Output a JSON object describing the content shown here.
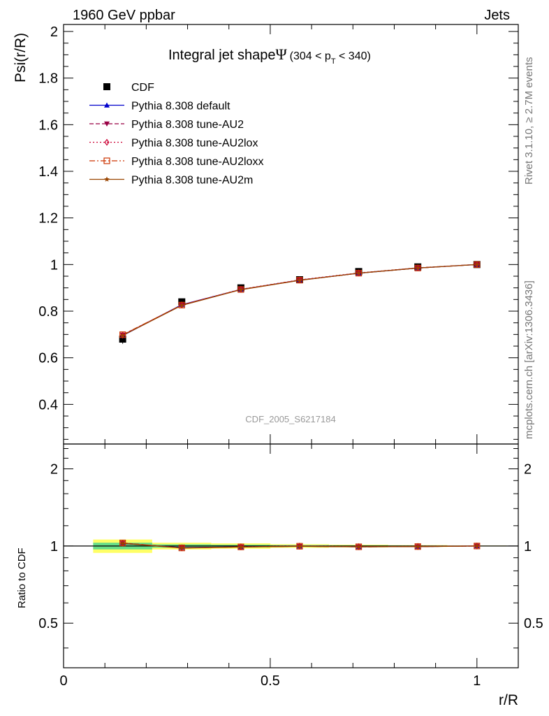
{
  "header": {
    "left": "1960 GeV ppbar",
    "right": "Jets"
  },
  "side_text": {
    "rivet": "Rivet 3.1.10, ≥ 2.7M events",
    "mcplots": "mcplots.cern.ch [arXiv:1306.3436]"
  },
  "chart_data": [
    {
      "type": "line",
      "title_main": "Integral jet shape",
      "title_symbol": "Ψ",
      "title_range_pre": "(304 < p",
      "title_range_sub": "T",
      "title_range_post": " < 340)",
      "ylabel": "Psi(r/R)",
      "xlabel": "",
      "watermark": "CDF_2005_S6217184",
      "xlim": [
        0,
        1.1
      ],
      "ylim": [
        0.23,
        2.03
      ],
      "yticks": [
        0.4,
        0.6,
        0.8,
        1,
        1.2,
        1.4,
        1.6,
        1.8,
        2
      ],
      "ytick_labels": [
        "0.4",
        "0.6",
        "0.8",
        "1",
        "1.2",
        "1.4",
        "1.6",
        "1.8",
        "2"
      ],
      "legend_position": "top-left",
      "x": [
        0.143,
        0.286,
        0.429,
        0.571,
        0.714,
        0.857,
        1.0
      ],
      "data": {
        "name": "CDF",
        "color": "#000000",
        "marker": "square",
        "y": [
          0.68,
          0.84,
          0.9,
          0.935,
          0.97,
          0.99,
          1.0
        ],
        "yerr": [
          0.02,
          0.012,
          0.01,
          0.008,
          0.006,
          0.004,
          0.0
        ]
      },
      "series": [
        {
          "name": "Pythia 8.308 default",
          "color": "#0000cc",
          "marker": "triangle-up",
          "dash": "solid",
          "y": [
            0.695,
            0.828,
            0.893,
            0.933,
            0.963,
            0.985,
            1.0
          ]
        },
        {
          "name": "Pythia 8.308 tune-AU2",
          "color": "#990044",
          "marker": "triangle-down",
          "dash": "dashed",
          "y": [
            0.698,
            0.826,
            0.893,
            0.933,
            0.963,
            0.985,
            1.0
          ]
        },
        {
          "name": "Pythia 8.308 tune-AU2lox",
          "color": "#cc0033",
          "marker": "diamond-open",
          "dash": "dotted",
          "y": [
            0.697,
            0.827,
            0.894,
            0.934,
            0.964,
            0.986,
            1.0
          ]
        },
        {
          "name": "Pythia 8.308 tune-AU2loxx",
          "color": "#cc3300",
          "marker": "square-open",
          "dash": "dashdot",
          "y": [
            0.699,
            0.826,
            0.893,
            0.933,
            0.963,
            0.985,
            1.0
          ]
        },
        {
          "name": "Pythia 8.308 tune-AU2m",
          "color": "#994400",
          "marker": "star",
          "dash": "solid",
          "y": [
            0.696,
            0.825,
            0.892,
            0.932,
            0.963,
            0.985,
            1.0
          ]
        }
      ]
    },
    {
      "type": "line",
      "ylabel": "Ratio to CDF",
      "xlabel": "r/R",
      "xlim": [
        0,
        1.1
      ],
      "ylim": [
        0.335,
        2.5
      ],
      "y_scale": "log",
      "yticks": [
        0.5,
        1,
        2
      ],
      "ytick_labels": [
        "0.5",
        "1",
        "2"
      ],
      "xticks": [
        0,
        0.5,
        1
      ],
      "xtick_labels": [
        "0",
        "0.5",
        "1"
      ],
      "x": [
        0.143,
        0.286,
        0.429,
        0.571,
        0.714,
        0.857,
        1.0
      ],
      "band_inner": [
        0.03,
        0.015,
        0.012,
        0.008,
        0.006,
        0.004,
        0.002
      ],
      "band_outer": [
        0.06,
        0.03,
        0.024,
        0.016,
        0.012,
        0.008,
        0.004
      ],
      "band_inner_color": "#66dd88",
      "band_outer_color": "#ffff66",
      "series": [
        {
          "name": "Pythia 8.308 default",
          "y": [
            1.022,
            0.986,
            0.992,
            0.998,
            0.993,
            0.995,
            1.0
          ]
        },
        {
          "name": "Pythia 8.308 tune-AU2",
          "y": [
            1.027,
            0.983,
            0.992,
            0.998,
            0.993,
            0.995,
            1.0
          ]
        },
        {
          "name": "Pythia 8.308 tune-AU2lox",
          "y": [
            1.025,
            0.984,
            0.993,
            0.999,
            0.994,
            0.996,
            1.0
          ]
        },
        {
          "name": "Pythia 8.308 tune-AU2loxx",
          "y": [
            1.028,
            0.983,
            0.992,
            0.998,
            0.993,
            0.995,
            1.0
          ]
        },
        {
          "name": "Pythia 8.308 tune-AU2m",
          "y": [
            1.024,
            0.982,
            0.991,
            0.997,
            0.993,
            0.995,
            1.0
          ]
        }
      ]
    }
  ]
}
